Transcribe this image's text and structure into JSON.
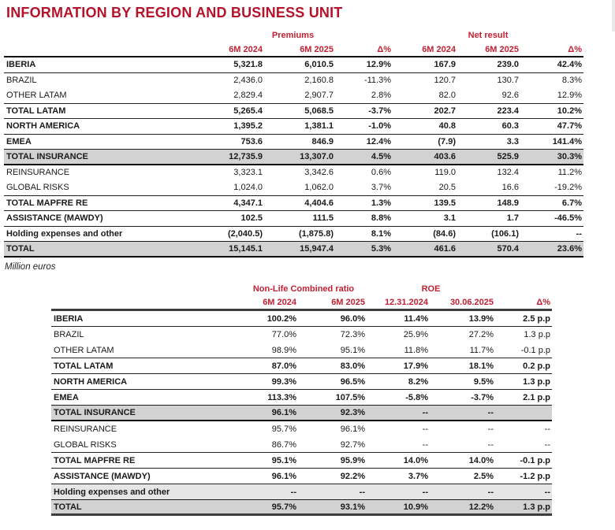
{
  "title": "INFORMATION BY REGION AND BUSINESS UNIT",
  "footnote": "Million euros",
  "colors": {
    "accent_red": "#c22133",
    "title_red": "#b5122b",
    "shaded_row": "#d2d2d2",
    "light_shaded_row": "#e6e6e6",
    "rule_dark": "#1f1f1f"
  },
  "table1": {
    "group_headers": {
      "premiums": "Premiums",
      "net_result": "Net result"
    },
    "columns": [
      "6M 2024",
      "6M 2025",
      "Δ%",
      "6M 2024",
      "6M 2025",
      "Δ%"
    ],
    "rows": [
      {
        "label": "IBERIA",
        "values": [
          "5,321.8",
          "6,010.5",
          "12.9%",
          "167.9",
          "239.0",
          "42.4%"
        ],
        "emphasis": true,
        "shaded": "none",
        "rule_below": "thin"
      },
      {
        "label": "BRAZIL",
        "values": [
          "2,436.0",
          "2,160.8",
          "-11.3%",
          "120.7",
          "130.7",
          "8.3%"
        ],
        "emphasis": false,
        "shaded": "none",
        "rule_below": "none"
      },
      {
        "label": "OTHER LATAM",
        "values": [
          "2,829.4",
          "2,907.7",
          "2.8%",
          "82.0",
          "92.6",
          "12.9%"
        ],
        "emphasis": false,
        "shaded": "none",
        "rule_below": "thin"
      },
      {
        "label": "TOTAL LATAM",
        "values": [
          "5,265.4",
          "5,068.5",
          "-3.7%",
          "202.7",
          "223.4",
          "10.2%"
        ],
        "emphasis": true,
        "shaded": "none",
        "rule_below": "thin"
      },
      {
        "label": "NORTH AMERICA",
        "values": [
          "1,395.2",
          "1,381.1",
          "-1.0%",
          "40.8",
          "60.3",
          "47.7%"
        ],
        "emphasis": true,
        "shaded": "none",
        "rule_below": "thin"
      },
      {
        "label": "EMEA",
        "values": [
          "753.6",
          "846.9",
          "12.4%",
          "(7.9)",
          "3.3",
          "141.4%"
        ],
        "emphasis": true,
        "shaded": "none",
        "rule_below": "thin"
      },
      {
        "label": "TOTAL INSURANCE",
        "values": [
          "12,735.9",
          "13,307.0",
          "4.5%",
          "403.6",
          "525.9",
          "30.3%"
        ],
        "emphasis": true,
        "shaded": "dark",
        "rule_below": "thick"
      },
      {
        "label": "REINSURANCE",
        "values": [
          "3,323.1",
          "3,342.6",
          "0.6%",
          "119.0",
          "132.4",
          "11.2%"
        ],
        "emphasis": false,
        "shaded": "none",
        "rule_below": "none"
      },
      {
        "label": "GLOBAL RISKS",
        "values": [
          "1,024.0",
          "1,062.0",
          "3.7%",
          "20.5",
          "16.6",
          "-19.2%"
        ],
        "emphasis": false,
        "shaded": "none",
        "rule_below": "thin"
      },
      {
        "label": "TOTAL MAPFRE RE",
        "values": [
          "4,347.1",
          "4,404.6",
          "1.3%",
          "139.5",
          "148.9",
          "6.7%"
        ],
        "emphasis": true,
        "shaded": "none",
        "rule_below": "thin"
      },
      {
        "label": "ASSISTANCE (MAWDY)",
        "values": [
          "102.5",
          "111.5",
          "8.8%",
          "3.1",
          "1.7",
          "-46.5%"
        ],
        "emphasis": true,
        "shaded": "none",
        "rule_below": "thin"
      },
      {
        "label": "Holding expenses and other",
        "values": [
          "(2,040.5)",
          "(1,875.8)",
          "8.1%",
          "(84.6)",
          "(106.1)",
          "--"
        ],
        "emphasis": true,
        "shaded": "none",
        "rule_below": "thin"
      },
      {
        "label": "TOTAL",
        "values": [
          "15,145.1",
          "15,947.4",
          "5.3%",
          "461.6",
          "570.4",
          "23.6%"
        ],
        "emphasis": true,
        "shaded": "dark",
        "rule_below": "thick"
      }
    ]
  },
  "table2": {
    "group_headers": {
      "combined_ratio": "Non-Life Combined ratio",
      "roe": "ROE"
    },
    "columns": [
      "6M 2024",
      "6M 2025",
      "12.31.2024",
      "30.06.2025",
      "Δ%"
    ],
    "rows": [
      {
        "label": "IBERIA",
        "values": [
          "100.2%",
          "96.0%",
          "11.4%",
          "13.9%",
          "2.5 p.p"
        ],
        "emphasis": true,
        "shaded": "none",
        "rule_below": "thin"
      },
      {
        "label": "BRAZIL",
        "values": [
          "77.0%",
          "72.3%",
          "25.9%",
          "27.2%",
          "1.3 p.p"
        ],
        "emphasis": false,
        "shaded": "none",
        "rule_below": "none"
      },
      {
        "label": "OTHER LATAM",
        "values": [
          "98.9%",
          "95.1%",
          "11.8%",
          "11.7%",
          "-0.1 p.p"
        ],
        "emphasis": false,
        "shaded": "none",
        "rule_below": "thin"
      },
      {
        "label": "TOTAL LATAM",
        "values": [
          "87.0%",
          "83.0%",
          "17.9%",
          "18.1%",
          "0.2 p.p"
        ],
        "emphasis": true,
        "shaded": "none",
        "rule_below": "thin"
      },
      {
        "label": "NORTH AMERICA",
        "values": [
          "99.3%",
          "96.5%",
          "8.2%",
          "9.5%",
          "1.3 p.p"
        ],
        "emphasis": true,
        "shaded": "none",
        "rule_below": "thin"
      },
      {
        "label": "EMEA",
        "values": [
          "113.3%",
          "107.5%",
          "-5.8%",
          "-3.7%",
          "2.1 p.p"
        ],
        "emphasis": true,
        "shaded": "none",
        "rule_below": "thin"
      },
      {
        "label": "TOTAL INSURANCE",
        "values": [
          "96.1%",
          "92.3%",
          "--",
          "--",
          ""
        ],
        "emphasis": true,
        "shaded": "dark",
        "rule_below": "thick"
      },
      {
        "label": "REINSURANCE",
        "values": [
          "95.7%",
          "96.1%",
          "--",
          "--",
          "--"
        ],
        "emphasis": false,
        "shaded": "none",
        "rule_below": "none"
      },
      {
        "label": "GLOBAL RISKS",
        "values": [
          "86.7%",
          "92.7%",
          "--",
          "--",
          "--"
        ],
        "emphasis": false,
        "shaded": "none",
        "rule_below": "thin"
      },
      {
        "label": "TOTAL MAPFRE RE",
        "values": [
          "95.1%",
          "95.9%",
          "14.0%",
          "14.0%",
          "-0.1 p.p"
        ],
        "emphasis": true,
        "shaded": "none",
        "rule_below": "thin"
      },
      {
        "label": "ASSISTANCE (MAWDY)",
        "values": [
          "96.1%",
          "92.2%",
          "3.7%",
          "2.5%",
          "-1.2 p.p"
        ],
        "emphasis": true,
        "shaded": "none",
        "rule_below": "thin"
      },
      {
        "label": "Holding expenses and other",
        "values": [
          "--",
          "--",
          "--",
          "--",
          "--"
        ],
        "emphasis": true,
        "shaded": "light",
        "rule_below": "thin"
      },
      {
        "label": "TOTAL",
        "values": [
          "95.7%",
          "93.1%",
          "10.9%",
          "12.2%",
          "1.3 p.p"
        ],
        "emphasis": true,
        "shaded": "dark",
        "rule_below": "heavy"
      }
    ]
  }
}
